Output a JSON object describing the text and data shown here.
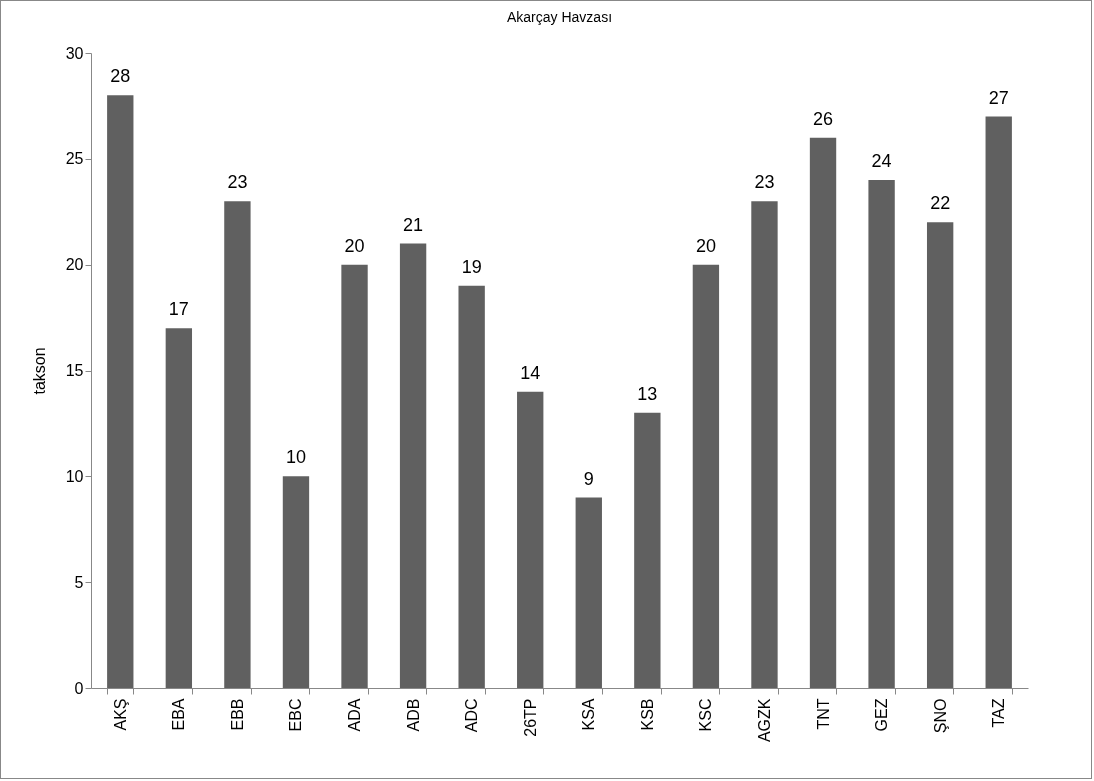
{
  "chart_data": {
    "type": "bar",
    "title": "Akarçay Havzası",
    "ylabel": "takson",
    "categories": [
      "AKŞ",
      "EBA",
      "EBB",
      "EBC",
      "ADA",
      "ADB",
      "ADC",
      "26TP",
      "KSA",
      "KSB",
      "KSC",
      "AGZK",
      "TNT",
      "GEZ",
      "ŞNO",
      "TAZ"
    ],
    "values": [
      28,
      17,
      23,
      10,
      20,
      21,
      19,
      14,
      9,
      13,
      20,
      23,
      26,
      24,
      22,
      27
    ],
    "color": "#606060",
    "ylim": [
      0,
      30
    ],
    "yticks": [
      0,
      5,
      10,
      15,
      20,
      25,
      30
    ],
    "grid": false,
    "data_labels": true
  }
}
